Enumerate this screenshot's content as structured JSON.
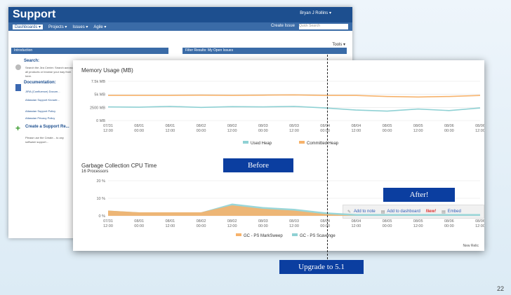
{
  "slide": {
    "number": "22"
  },
  "jira": {
    "logo": "Support",
    "user": "Bryan J Rollins ▾",
    "nav": [
      "Dashboards ▾",
      "Projects ▾",
      "Issues ▾",
      "Agile ▾"
    ],
    "create": "Create Issue",
    "search_placeholder": "Quick Search",
    "intro_header": "Introduction",
    "filter_header": "Filter Results: My Open Issues",
    "search_title": "Search:",
    "search_text": "Search the Jira Center. Search across all products or browse your way from here.",
    "doc_title": "Documentation:",
    "doc_links": [
      "JIRA (Confluence) Docum...",
      "Atlassian Support Knowle...",
      "Atlassian Support Policy",
      "Atlassian Privacy Policy"
    ],
    "create_title": "Create a Support Re...",
    "create_text": "Please use the Create... to any software support...",
    "tools": "Tools ▾"
  },
  "chart_top": {
    "title": "Memory Usage (MB)",
    "y_ticks": [
      "7.5k MB",
      "5k MB",
      "2500 MB",
      "0 MB"
    ],
    "x_ticks": [
      "07/31\n12:00",
      "08/01\n00:00",
      "08/01\n12:00",
      "08/02\n00:00",
      "08/02\n12:00",
      "08/03\n00:00",
      "08/03\n12:00",
      "08/04\n00:00",
      "08/04\n12:00",
      "08/05\n00:00",
      "08/05\n12:00",
      "08/06\n00:00",
      "08/06\n12:00"
    ],
    "legend": [
      "Used Heap",
      "Committed Heap"
    ],
    "colors": {
      "used": "#8fd1d4",
      "committed": "#f6b26b"
    }
  },
  "toolbar": {
    "add_note": "Add to note",
    "add_dashboard": "Add to dashboard",
    "new": "New!",
    "embed": "Embed"
  },
  "chart_bottom": {
    "title": "Garbage Collection CPU Time",
    "subtitle": "16 Processors",
    "y_ticks": [
      "20 %",
      "10 %",
      "0 %"
    ],
    "x_ticks": [
      "07/31\n12:00",
      "08/01\n00:00",
      "08/01\n12:00",
      "08/02\n00:00",
      "08/02\n12:00",
      "08/03\n00:00",
      "08/03\n12:00",
      "08/04\n00:00",
      "08/04\n12:00",
      "08/05\n00:00",
      "08/05\n12:00",
      "08/06\n00:00",
      "08/06\n12:00"
    ],
    "legend": [
      "GC - PS MarkSweep",
      "GC - PS Scavenge"
    ],
    "colors": {
      "marksweep": "#f6b26b",
      "scavenge": "#8fd1d4"
    },
    "footer": "New Relic"
  },
  "callouts": {
    "before": "Before",
    "after": "After!",
    "upgrade": "Upgrade to 5.1"
  },
  "chart_data": [
    {
      "type": "line",
      "title": "Memory Usage (MB)",
      "ylim": [
        0,
        7500
      ],
      "x": [
        "07/31 12:00",
        "08/01 00:00",
        "08/01 12:00",
        "08/02 00:00",
        "08/02 12:00",
        "08/03 00:00",
        "08/03 12:00",
        "08/04 00:00",
        "08/04 12:00",
        "08/05 00:00",
        "08/05 12:00",
        "08/06 00:00",
        "08/06 12:00"
      ],
      "series": [
        {
          "name": "Used Heap",
          "values": [
            2600,
            2550,
            2700,
            2500,
            2650,
            2600,
            2700,
            2400,
            2000,
            1800,
            2200,
            1900,
            2400
          ]
        },
        {
          "name": "Committed Heap",
          "values": [
            4800,
            4800,
            4800,
            4850,
            4800,
            4850,
            4900,
            4800,
            4800,
            4600,
            4500,
            4600,
            4800
          ]
        }
      ]
    },
    {
      "type": "area",
      "title": "Garbage Collection CPU Time",
      "ylim": [
        0,
        20
      ],
      "x": [
        "07/31 12:00",
        "08/01 00:00",
        "08/01 12:00",
        "08/02 00:00",
        "08/02 12:00",
        "08/03 00:00",
        "08/03 12:00",
        "08/04 00:00",
        "08/04 12:00",
        "08/05 00:00",
        "08/05 12:00",
        "08/06 00:00",
        "08/06 12:00"
      ],
      "series": [
        {
          "name": "GC - PS MarkSweep",
          "values": [
            3,
            2,
            2,
            2,
            6,
            4,
            3,
            1,
            0,
            0,
            0,
            0,
            0
          ]
        },
        {
          "name": "GC - PS Scavenge",
          "values": [
            3,
            2,
            2,
            2,
            7,
            5,
            4,
            2,
            1,
            1,
            1,
            1,
            1
          ]
        }
      ]
    }
  ]
}
